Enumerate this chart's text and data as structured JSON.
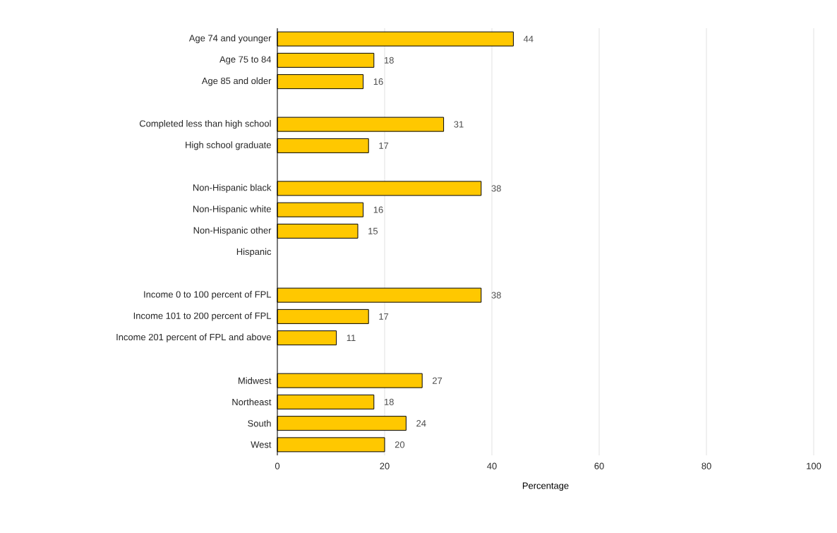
{
  "chart_data": {
    "type": "bar",
    "orientation": "horizontal",
    "categories": [
      "Age 74 and younger",
      "Age 75 to 84",
      "Age 85 and older",
      null,
      "Completed less than high school",
      "High school graduate",
      null,
      "Non-Hispanic black",
      "Non-Hispanic white",
      "Non-Hispanic other",
      "Hispanic",
      null,
      "Income 0 to 100 percent of FPL",
      "Income 101 to 200 percent of FPL",
      "Income 201 percent of FPL and above",
      null,
      "Midwest",
      "Northeast",
      "South",
      "West"
    ],
    "values": [
      44,
      18,
      16,
      null,
      31,
      17,
      null,
      38,
      16,
      15,
      null,
      null,
      38,
      17,
      11,
      null,
      27,
      18,
      24,
      20
    ],
    "color": "#ffc800",
    "xlim": [
      0,
      100
    ],
    "xticks": [
      0,
      20,
      40,
      60,
      80,
      100
    ],
    "xlabel": "Percentage",
    "grid": "x",
    "data_labels": true
  }
}
